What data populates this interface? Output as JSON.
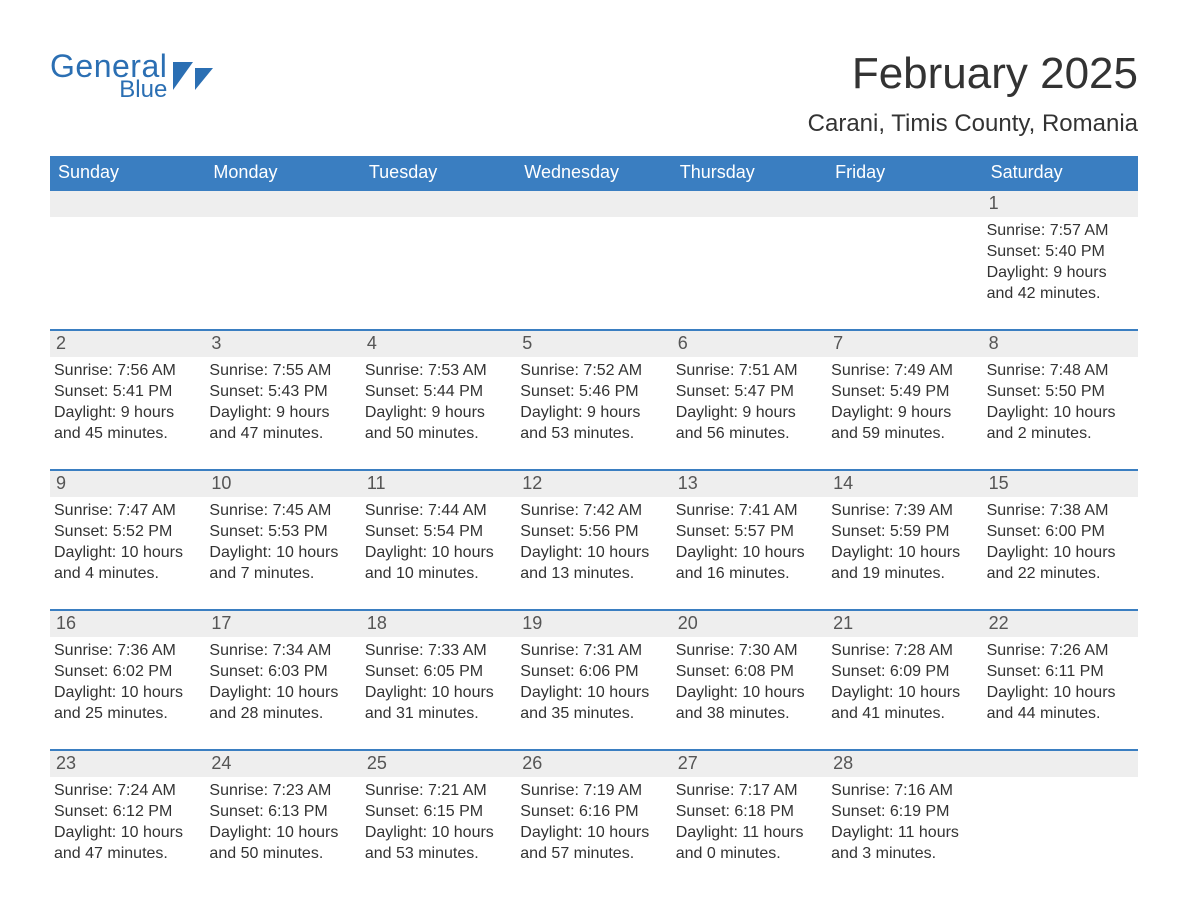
{
  "logo": {
    "general": "General",
    "blue": "Blue",
    "mark_color": "#2b6fb3"
  },
  "title": "February 2025",
  "location": "Carani, Timis County, Romania",
  "colors": {
    "header_bg": "#3a7ec1",
    "header_text": "#ffffff",
    "row_divider": "#3a7ec1",
    "daynum_strip_bg": "#eeeeee",
    "text": "#333333",
    "logo": "#2b6fb3",
    "page_bg": "#ffffff"
  },
  "days_of_week": [
    "Sunday",
    "Monday",
    "Tuesday",
    "Wednesday",
    "Thursday",
    "Friday",
    "Saturday"
  ],
  "weeks": [
    [
      null,
      null,
      null,
      null,
      null,
      null,
      {
        "n": "1",
        "sunrise": "Sunrise: 7:57 AM",
        "sunset": "Sunset: 5:40 PM",
        "daylight": "Daylight: 9 hours and 42 minutes."
      }
    ],
    [
      {
        "n": "2",
        "sunrise": "Sunrise: 7:56 AM",
        "sunset": "Sunset: 5:41 PM",
        "daylight": "Daylight: 9 hours and 45 minutes."
      },
      {
        "n": "3",
        "sunrise": "Sunrise: 7:55 AM",
        "sunset": "Sunset: 5:43 PM",
        "daylight": "Daylight: 9 hours and 47 minutes."
      },
      {
        "n": "4",
        "sunrise": "Sunrise: 7:53 AM",
        "sunset": "Sunset: 5:44 PM",
        "daylight": "Daylight: 9 hours and 50 minutes."
      },
      {
        "n": "5",
        "sunrise": "Sunrise: 7:52 AM",
        "sunset": "Sunset: 5:46 PM",
        "daylight": "Daylight: 9 hours and 53 minutes."
      },
      {
        "n": "6",
        "sunrise": "Sunrise: 7:51 AM",
        "sunset": "Sunset: 5:47 PM",
        "daylight": "Daylight: 9 hours and 56 minutes."
      },
      {
        "n": "7",
        "sunrise": "Sunrise: 7:49 AM",
        "sunset": "Sunset: 5:49 PM",
        "daylight": "Daylight: 9 hours and 59 minutes."
      },
      {
        "n": "8",
        "sunrise": "Sunrise: 7:48 AM",
        "sunset": "Sunset: 5:50 PM",
        "daylight": "Daylight: 10 hours and 2 minutes."
      }
    ],
    [
      {
        "n": "9",
        "sunrise": "Sunrise: 7:47 AM",
        "sunset": "Sunset: 5:52 PM",
        "daylight": "Daylight: 10 hours and 4 minutes."
      },
      {
        "n": "10",
        "sunrise": "Sunrise: 7:45 AM",
        "sunset": "Sunset: 5:53 PM",
        "daylight": "Daylight: 10 hours and 7 minutes."
      },
      {
        "n": "11",
        "sunrise": "Sunrise: 7:44 AM",
        "sunset": "Sunset: 5:54 PM",
        "daylight": "Daylight: 10 hours and 10 minutes."
      },
      {
        "n": "12",
        "sunrise": "Sunrise: 7:42 AM",
        "sunset": "Sunset: 5:56 PM",
        "daylight": "Daylight: 10 hours and 13 minutes."
      },
      {
        "n": "13",
        "sunrise": "Sunrise: 7:41 AM",
        "sunset": "Sunset: 5:57 PM",
        "daylight": "Daylight: 10 hours and 16 minutes."
      },
      {
        "n": "14",
        "sunrise": "Sunrise: 7:39 AM",
        "sunset": "Sunset: 5:59 PM",
        "daylight": "Daylight: 10 hours and 19 minutes."
      },
      {
        "n": "15",
        "sunrise": "Sunrise: 7:38 AM",
        "sunset": "Sunset: 6:00 PM",
        "daylight": "Daylight: 10 hours and 22 minutes."
      }
    ],
    [
      {
        "n": "16",
        "sunrise": "Sunrise: 7:36 AM",
        "sunset": "Sunset: 6:02 PM",
        "daylight": "Daylight: 10 hours and 25 minutes."
      },
      {
        "n": "17",
        "sunrise": "Sunrise: 7:34 AM",
        "sunset": "Sunset: 6:03 PM",
        "daylight": "Daylight: 10 hours and 28 minutes."
      },
      {
        "n": "18",
        "sunrise": "Sunrise: 7:33 AM",
        "sunset": "Sunset: 6:05 PM",
        "daylight": "Daylight: 10 hours and 31 minutes."
      },
      {
        "n": "19",
        "sunrise": "Sunrise: 7:31 AM",
        "sunset": "Sunset: 6:06 PM",
        "daylight": "Daylight: 10 hours and 35 minutes."
      },
      {
        "n": "20",
        "sunrise": "Sunrise: 7:30 AM",
        "sunset": "Sunset: 6:08 PM",
        "daylight": "Daylight: 10 hours and 38 minutes."
      },
      {
        "n": "21",
        "sunrise": "Sunrise: 7:28 AM",
        "sunset": "Sunset: 6:09 PM",
        "daylight": "Daylight: 10 hours and 41 minutes."
      },
      {
        "n": "22",
        "sunrise": "Sunrise: 7:26 AM",
        "sunset": "Sunset: 6:11 PM",
        "daylight": "Daylight: 10 hours and 44 minutes."
      }
    ],
    [
      {
        "n": "23",
        "sunrise": "Sunrise: 7:24 AM",
        "sunset": "Sunset: 6:12 PM",
        "daylight": "Daylight: 10 hours and 47 minutes."
      },
      {
        "n": "24",
        "sunrise": "Sunrise: 7:23 AM",
        "sunset": "Sunset: 6:13 PM",
        "daylight": "Daylight: 10 hours and 50 minutes."
      },
      {
        "n": "25",
        "sunrise": "Sunrise: 7:21 AM",
        "sunset": "Sunset: 6:15 PM",
        "daylight": "Daylight: 10 hours and 53 minutes."
      },
      {
        "n": "26",
        "sunrise": "Sunrise: 7:19 AM",
        "sunset": "Sunset: 6:16 PM",
        "daylight": "Daylight: 10 hours and 57 minutes."
      },
      {
        "n": "27",
        "sunrise": "Sunrise: 7:17 AM",
        "sunset": "Sunset: 6:18 PM",
        "daylight": "Daylight: 11 hours and 0 minutes."
      },
      {
        "n": "28",
        "sunrise": "Sunrise: 7:16 AM",
        "sunset": "Sunset: 6:19 PM",
        "daylight": "Daylight: 11 hours and 3 minutes."
      },
      null
    ]
  ]
}
